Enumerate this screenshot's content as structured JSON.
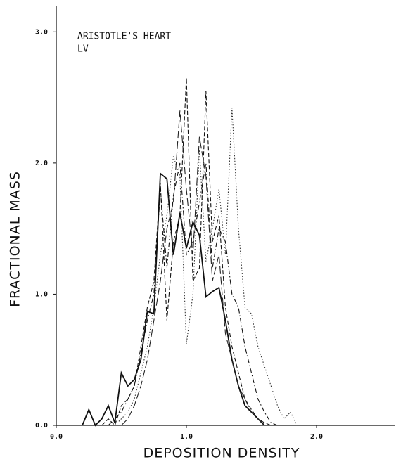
{
  "chart_data": {
    "type": "line",
    "annotations": [
      "ARISTOTLE'S HEART",
      "LV"
    ],
    "x_label": "DEPOSITION DENSITY",
    "y_label": "FRACTIONAL MASS",
    "x": [
      0.2,
      0.25,
      0.3,
      0.35,
      0.4,
      0.45,
      0.5,
      0.55,
      0.6,
      0.65,
      0.7,
      0.75,
      0.8,
      0.85,
      0.9,
      0.95,
      1.0,
      1.05,
      1.1,
      1.15,
      1.2,
      1.25,
      1.3,
      1.35,
      1.4,
      1.45,
      1.5,
      1.55,
      1.6,
      1.65,
      1.7,
      1.75,
      1.8,
      1.85
    ],
    "series": [
      {
        "color": "#111111",
        "dash": "solid",
        "values": [
          0,
          0.12,
          0,
          0.05,
          0.15,
          0.02,
          0.4,
          0.3,
          0.35,
          0.5,
          0.87,
          0.85,
          1.92,
          1.88,
          1.3,
          1.62,
          1.35,
          1.55,
          1.45,
          0.98,
          1.02,
          1.05,
          0.8,
          0.5,
          0.3,
          0.15,
          0.1,
          0.05,
          0,
          null,
          null,
          null,
          null,
          null
        ]
      },
      {
        "color": "#111111",
        "dash": "dashed",
        "values": [
          null,
          null,
          null,
          0,
          0.05,
          0,
          0.15,
          0.2,
          0.3,
          0.6,
          0.9,
          1.1,
          1.85,
          0.8,
          1.4,
          1.6,
          2.65,
          1.1,
          1.2,
          2.55,
          1.4,
          1.6,
          0.9,
          0.6,
          0.4,
          0.2,
          0.12,
          0.05,
          0.02,
          0,
          null,
          null,
          null,
          null
        ]
      },
      {
        "color": "#333333",
        "dash": "dotted",
        "values": [
          null,
          null,
          null,
          null,
          null,
          0,
          0.05,
          0.1,
          0.2,
          0.4,
          0.6,
          0.9,
          1.3,
          1.6,
          2.05,
          1.9,
          0.62,
          1.0,
          2.1,
          1.25,
          1.5,
          1.8,
          1.3,
          2.42,
          1.5,
          0.9,
          0.85,
          0.6,
          0.45,
          0.3,
          0.15,
          0.05,
          0.1,
          0
        ]
      },
      {
        "color": "#111111",
        "dash": "dashdot",
        "values": [
          null,
          null,
          null,
          null,
          0,
          0.05,
          0.1,
          0.2,
          0.3,
          0.55,
          0.8,
          1.0,
          1.8,
          1.2,
          1.75,
          2.0,
          1.3,
          1.4,
          1.7,
          2.0,
          1.2,
          1.5,
          1.4,
          1.0,
          0.9,
          0.6,
          0.4,
          0.2,
          0.1,
          0.02,
          0,
          null,
          null,
          null
        ]
      },
      {
        "color": "#222222",
        "dash": "longdash",
        "values": [
          null,
          null,
          null,
          null,
          null,
          null,
          0,
          0.05,
          0.15,
          0.3,
          0.5,
          0.8,
          1.1,
          1.5,
          1.7,
          2.4,
          1.8,
          1.3,
          2.2,
          1.9,
          1.1,
          1.3,
          0.7,
          0.5,
          0.3,
          0.2,
          0.1,
          0.05,
          0,
          null,
          null,
          null,
          null,
          null
        ]
      }
    ],
    "xlim": [
      0,
      2.6
    ],
    "ylim": [
      0,
      3.2
    ],
    "xticks": [
      {
        "value": 0,
        "label": "0.0"
      },
      {
        "value": 1,
        "label": "1.0"
      },
      {
        "value": 2,
        "label": "2.0"
      }
    ],
    "yticks": [
      {
        "value": 0,
        "label": "0.0"
      },
      {
        "value": 1,
        "label": "1.0"
      },
      {
        "value": 2,
        "label": "2.0"
      },
      {
        "value": 3,
        "label": "3.0"
      }
    ],
    "grid": false
  }
}
